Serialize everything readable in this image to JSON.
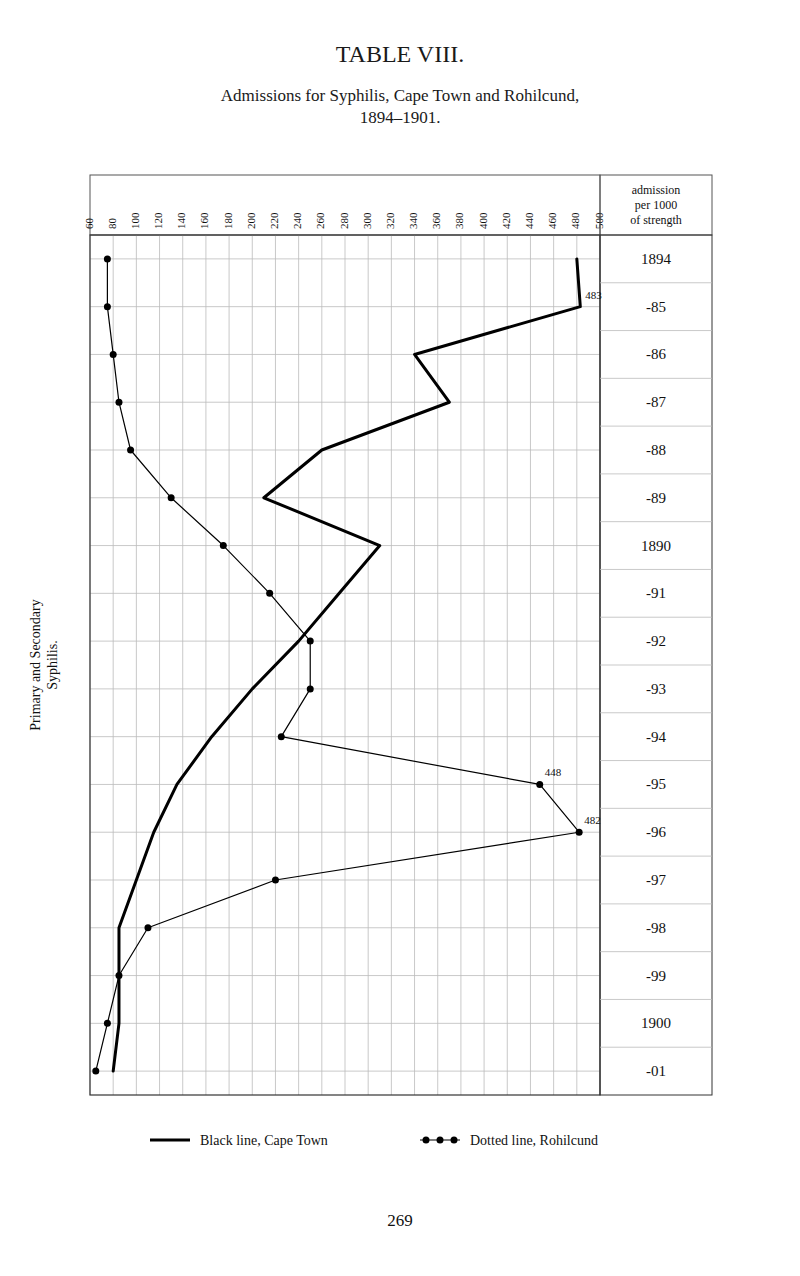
{
  "chart_data": {
    "type": "line",
    "orientation": "horizontal",
    "title": "TABLE VIII.",
    "subtitle": "Admissions for Syphilis, Cape Town and Rohilcund,\n1894–1901.",
    "x_label": "admission\nper 1000\nof strength",
    "categories": [
      "1894",
      "-85",
      "-86",
      "-87",
      "-88",
      "-89",
      "1890",
      "-91",
      "-92",
      "-93",
      "-94",
      "-95",
      "-96",
      "-97",
      "-98",
      "-99",
      "1900",
      "-01"
    ],
    "series": [
      {
        "name": "Black line, Cape Town",
        "color": "black",
        "line_style": "solid",
        "marker": "none",
        "values": [
          480,
          483,
          340,
          370,
          260,
          210,
          310,
          275,
          240,
          200,
          165,
          135,
          115,
          100,
          85,
          85,
          85,
          80
        ]
      },
      {
        "name": "Dotted line, Rohilcund",
        "color": "black",
        "line_style": "solid",
        "marker": "circle",
        "values": [
          75,
          75,
          80,
          85,
          95,
          130,
          175,
          215,
          250,
          250,
          225,
          448,
          482,
          220,
          110,
          85,
          75,
          65
        ]
      }
    ],
    "xlim": [
      60,
      500
    ],
    "xticks": [
      60,
      80,
      100,
      120,
      140,
      160,
      180,
      200,
      220,
      240,
      260,
      280,
      300,
      320,
      340,
      360,
      380,
      400,
      420,
      440,
      460,
      480,
      500
    ],
    "grid": true,
    "legend": "bottom",
    "annotations": [
      {
        "text": "483",
        "value": 483,
        "category": "-85"
      },
      {
        "text": "448",
        "value": 448,
        "category": "-95"
      },
      {
        "text": "482",
        "value": 482,
        "category": "-96"
      },
      {
        "text": "Primary and Secondary\nSyphilis."
      }
    ],
    "page_number": "269"
  }
}
